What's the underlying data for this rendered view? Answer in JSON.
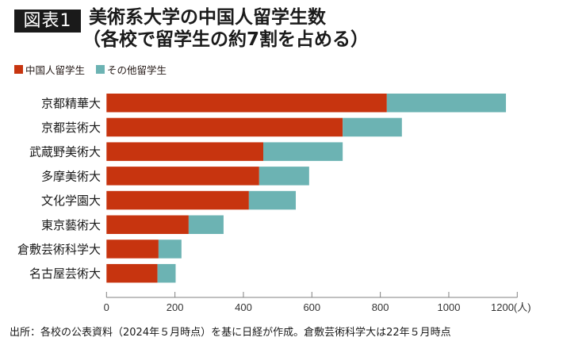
{
  "badge": "図表1",
  "title_line1": "美術系大学の中国人留学生数",
  "title_line2": "（各校で留学生の約7割を占める）",
  "footer": "出所：各校の公表資料（2024年５月時点）を基に日経が作成。倉敷芸術科学大は22年５月時点",
  "colors": {
    "chinese": "#c7340f",
    "other": "#6cb3b3",
    "axis": "#808080"
  },
  "chart_data": {
    "type": "bar",
    "orientation": "horizontal",
    "stacked": true,
    "title": "美術系大学の中国人留学生数（各校で留学生の約7割を占める）",
    "categories": [
      "京都精華大",
      "京都芸術大",
      "武蔵野美術大",
      "多摩美術大",
      "文化学園大",
      "東京藝術大",
      "倉敷芸術科学大",
      "名古屋芸術大"
    ],
    "series": [
      {
        "name": "中国人留学生",
        "values": [
          819,
          690,
          458,
          446,
          416,
          240,
          152,
          149
        ]
      },
      {
        "name": "その他留学生",
        "values": [
          348,
          173,
          232,
          146,
          137,
          102,
          67,
          53
        ]
      }
    ],
    "xlabel": "",
    "ylabel": "",
    "unit_label": "(人)",
    "xlim": [
      0,
      1200
    ],
    "xticks": [
      0,
      200,
      400,
      600,
      800,
      1000,
      1200
    ],
    "xtick_labels": [
      "0",
      "200",
      "400",
      "600",
      "800",
      "1000",
      "1200(人)"
    ],
    "legend_position": "top-left",
    "grid": false
  }
}
